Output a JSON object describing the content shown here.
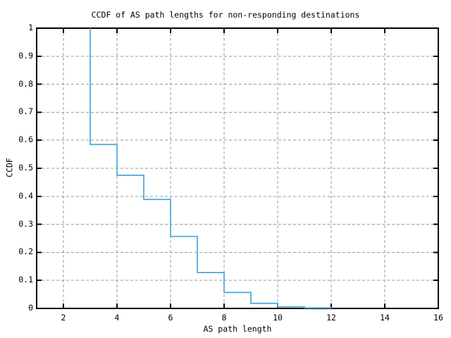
{
  "chart_data": {
    "type": "line",
    "subtype": "ccdf-step-function",
    "title": "CCDF of AS path lengths for non-responding destinations",
    "xlabel": "AS path length",
    "ylabel": "CCDF",
    "xlim": [
      1,
      16
    ],
    "ylim": [
      0,
      1
    ],
    "grid": true,
    "legend_position": "none",
    "xticks": {
      "values": [
        2,
        4,
        6,
        8,
        10,
        12,
        14,
        16
      ],
      "labels": [
        "2",
        "4",
        "6",
        "8",
        "10",
        "12",
        "14",
        "16"
      ]
    },
    "yticks": {
      "values": [
        0,
        0.1,
        0.2,
        0.3,
        0.4,
        0.5,
        0.6,
        0.7,
        0.8,
        0.9,
        1
      ],
      "labels": [
        "0",
        "0.1",
        "0.2",
        "0.3",
        "0.4",
        "0.5",
        "0.6",
        "0.7",
        "0.8",
        "0.9",
        "1"
      ]
    },
    "colors": {
      "line": "#55aadd",
      "grid": "#999999",
      "border": "#000000",
      "text": "#000000",
      "background": "#ffffff"
    },
    "series": [
      {
        "name": "CCDF",
        "step_style": "fsteps",
        "x": [
          3,
          4,
          5,
          6,
          7,
          8,
          9,
          10,
          11,
          12
        ],
        "y": [
          1.0,
          0.585,
          0.475,
          0.389,
          0.257,
          0.128,
          0.057,
          0.018,
          0.006,
          0.002
        ],
        "final_point": [
          12,
          0
        ]
      }
    ]
  }
}
